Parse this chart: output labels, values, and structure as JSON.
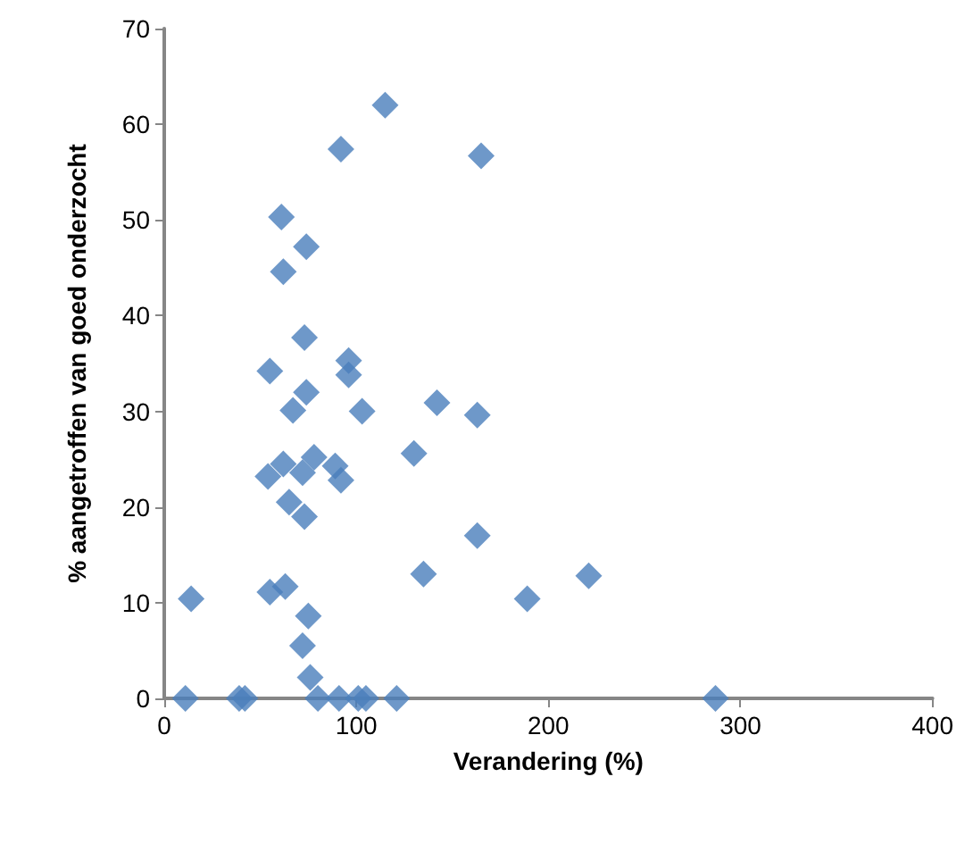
{
  "chart_data": {
    "type": "scatter",
    "xlabel": "Verandering (%)",
    "ylabel": "% aangetroffen van goed onderzocht",
    "marker": "diamond",
    "x": [
      11,
      39,
      42,
      80,
      91,
      101,
      105,
      121,
      287,
      14,
      76,
      72,
      75,
      55,
      63,
      65,
      73,
      54,
      62,
      72,
      78,
      89,
      92,
      67,
      74,
      103,
      142,
      163,
      130,
      163,
      135,
      55,
      96,
      96,
      221,
      189,
      115,
      92,
      165,
      61,
      74,
      62,
      73
    ],
    "series": [
      {
        "color": "#4a7ebb",
        "values": [
          0,
          0,
          0,
          0,
          0,
          0,
          0,
          0,
          0,
          10.4,
          2.2,
          5.5,
          8.6,
          11.1,
          11.7,
          20.5,
          19.0,
          23.2,
          24.5,
          23.6,
          25.2,
          24.3,
          22.8,
          30.1,
          32,
          30,
          30.9,
          29.6,
          25.6,
          17,
          13,
          34.2,
          35.3,
          33.8,
          12.8,
          10.4,
          62,
          57.4,
          56.7,
          50.3,
          47.2,
          44.6,
          37.7
        ]
      }
    ],
    "xlim": [
      0,
      400
    ],
    "xticks": [
      0,
      100,
      200,
      300,
      400
    ],
    "ylim": [
      0,
      70
    ],
    "yticks": [
      0,
      10,
      20,
      30,
      40,
      50,
      60,
      70
    ]
  }
}
